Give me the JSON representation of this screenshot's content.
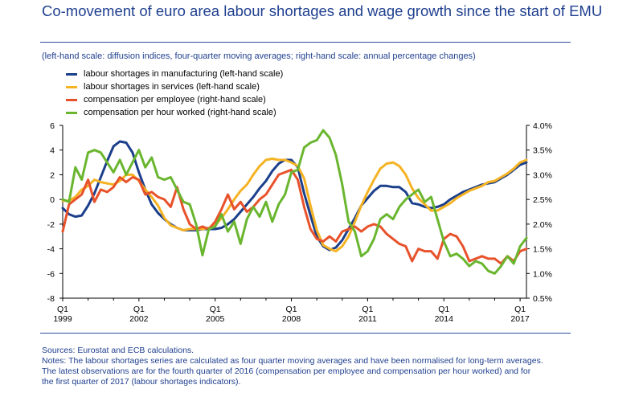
{
  "title": "Co-movement of euro area labour shortages and wage growth since the start of EMU",
  "subtitle": "(left-hand scale: diffusion indices, four-quarter moving averages; right-hand scale: annual percentage changes)",
  "sources": "Sources: Eurostat and ECB calculations.",
  "notes": [
    "Notes: The labour shortages series are calculated as four quarter moving averages and have been normalised for long-term averages.",
    "The latest observations are for the fourth quarter of 2016 (compensation per employee and compensation per hour worked) and for",
    "the first quarter of 2017 (labour shortages indicators)."
  ],
  "chart_data": {
    "type": "line",
    "x_start": "1999Q1",
    "x_end": "2017Q1",
    "xticks": [
      {
        "label_top": "Q1",
        "label_bottom": "1999",
        "quarter": 0
      },
      {
        "label_top": "Q1",
        "label_bottom": "2002",
        "quarter": 12
      },
      {
        "label_top": "Q1",
        "label_bottom": "2005",
        "quarter": 24
      },
      {
        "label_top": "Q1",
        "label_bottom": "2008",
        "quarter": 36
      },
      {
        "label_top": "Q1",
        "label_bottom": "2011",
        "quarter": 48
      },
      {
        "label_top": "Q1",
        "label_bottom": "2014",
        "quarter": 60
      },
      {
        "label_top": "Q1",
        "label_bottom": "2017",
        "quarter": 72
      }
    ],
    "ylim_left": [
      -8,
      6
    ],
    "yticks_left": [
      -8,
      -6,
      -4,
      -2,
      0,
      2,
      4,
      6
    ],
    "ylim_right": [
      0.5,
      4.0
    ],
    "yticks_right": [
      "0.5%",
      "1.0%",
      "1.5%",
      "2.0%",
      "2.5%",
      "3.0%",
      "3.5%",
      "4.0%"
    ],
    "grid": false,
    "legend_position": "top-left",
    "series": [
      {
        "name": "labour shortages in manufacturing (left-hand scale)",
        "axis": "left",
        "color": "#1b3f8b",
        "values": [
          -0.7,
          -1.2,
          -1.4,
          -1.3,
          -0.5,
          0.5,
          1.8,
          3.1,
          4.3,
          4.7,
          4.6,
          3.8,
          2.2,
          0.8,
          -0.4,
          -1.1,
          -1.6,
          -2.0,
          -2.3,
          -2.5,
          -2.5,
          -2.5,
          -2.4,
          -2.4,
          -2.4,
          -2.3,
          -2.0,
          -1.6,
          -1.0,
          -0.4,
          0.2,
          0.9,
          1.5,
          2.3,
          2.9,
          3.2,
          3.2,
          2.6,
          0.5,
          -1.3,
          -3.0,
          -3.8,
          -4.1,
          -3.9,
          -3.3,
          -2.4,
          -1.5,
          -0.5,
          0.1,
          0.7,
          1.1,
          1.1,
          1.0,
          1.0,
          0.6,
          -0.3,
          -0.4,
          -0.6,
          -0.7,
          -0.6,
          -0.4,
          0.0,
          0.3,
          0.6,
          0.8,
          1.0,
          1.2,
          1.3,
          1.4,
          1.7,
          2.0,
          2.4,
          2.8,
          3.0
        ]
      },
      {
        "name": "labour shortages in services (left-hand scale)",
        "axis": "left",
        "color": "#f5b324",
        "values": [
          -0.1,
          -0.1,
          0.2,
          0.8,
          1.1,
          1.6,
          1.4,
          1.3,
          1.2,
          1.5,
          2.0,
          2.0,
          1.5,
          0.8,
          0.2,
          -0.5,
          -1.5,
          -2.1,
          -2.3,
          -2.5,
          -2.4,
          -2.4,
          -2.4,
          -2.3,
          -2.1,
          -1.5,
          -0.8,
          0.0,
          0.7,
          1.2,
          2.0,
          2.7,
          3.2,
          3.3,
          3.2,
          3.2,
          3.0,
          2.7,
          1.7,
          -0.5,
          -2.5,
          -3.7,
          -4.0,
          -4.2,
          -3.8,
          -3.0,
          -1.8,
          -0.5,
          0.6,
          1.6,
          2.5,
          2.9,
          3.0,
          2.7,
          2.0,
          0.9,
          0.1,
          -0.4,
          -0.9,
          -0.9,
          -0.6,
          -0.3,
          0.1,
          0.4,
          0.7,
          0.9,
          1.1,
          1.4,
          1.5,
          1.8,
          2.1,
          2.5,
          3.0,
          3.2
        ]
      },
      {
        "name": "compensation per employee (right-hand scale)",
        "axis": "right",
        "color": "#e8522b",
        "values": [
          1.85,
          2.4,
          2.5,
          2.6,
          2.9,
          2.45,
          2.7,
          2.65,
          2.75,
          2.95,
          2.85,
          2.95,
          2.9,
          2.6,
          2.65,
          2.55,
          2.5,
          2.35,
          2.75,
          2.3,
          2.0,
          1.9,
          1.95,
          1.9,
          2.05,
          2.3,
          2.6,
          2.3,
          2.45,
          2.25,
          2.35,
          2.5,
          2.6,
          2.8,
          3.0,
          3.05,
          3.1,
          2.9,
          2.35,
          1.9,
          1.7,
          1.65,
          1.75,
          1.65,
          1.85,
          1.9,
          1.95,
          1.85,
          1.95,
          2.0,
          1.95,
          1.8,
          1.7,
          1.6,
          1.55,
          1.25,
          1.5,
          1.45,
          1.45,
          1.3,
          1.7,
          1.8,
          1.75,
          1.55,
          1.25,
          1.3,
          1.35,
          1.3,
          1.3,
          1.2,
          1.35,
          1.25,
          1.45,
          1.5
        ]
      },
      {
        "name": "compensation per hour worked (right-hand scale)",
        "axis": "right",
        "color": "#6ab62f",
        "values": [
          2.5,
          2.45,
          3.15,
          2.9,
          3.45,
          3.5,
          3.45,
          3.25,
          3.05,
          3.3,
          3.0,
          3.25,
          3.5,
          3.15,
          3.35,
          2.95,
          2.9,
          2.95,
          2.7,
          2.45,
          2.4,
          2.0,
          1.37,
          1.9,
          1.95,
          2.2,
          1.85,
          2.05,
          1.6,
          2.1,
          2.35,
          2.15,
          2.45,
          2.05,
          2.4,
          2.6,
          3.05,
          3.1,
          3.55,
          3.65,
          3.7,
          3.9,
          3.75,
          3.4,
          2.8,
          2.05,
          1.85,
          1.35,
          1.45,
          1.7,
          2.1,
          2.2,
          2.1,
          2.35,
          2.5,
          2.6,
          2.7,
          2.45,
          2.55,
          2.1,
          1.65,
          1.35,
          1.4,
          1.3,
          1.15,
          1.25,
          1.2,
          1.05,
          1.0,
          1.15,
          1.35,
          1.2,
          1.55,
          1.72
        ]
      }
    ]
  }
}
